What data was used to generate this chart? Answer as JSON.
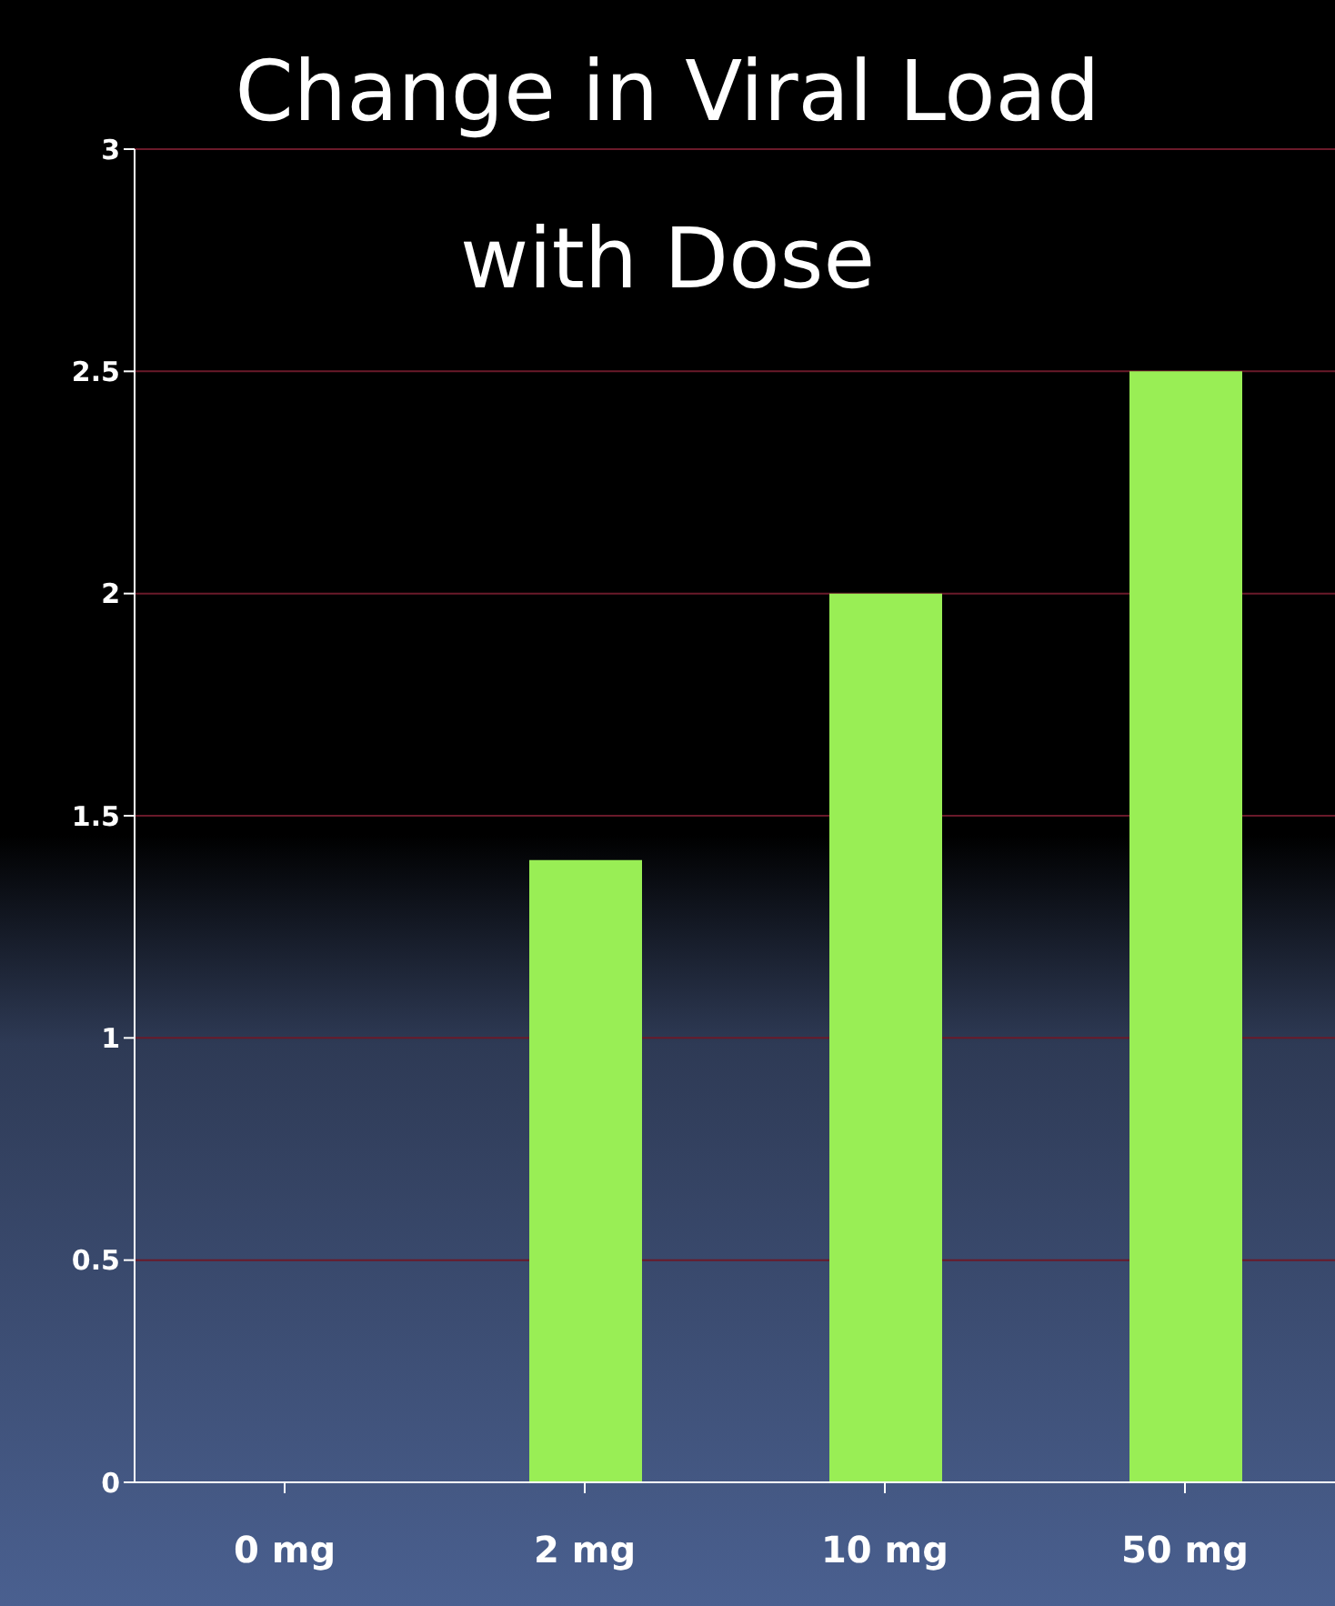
{
  "chart_data": {
    "type": "bar",
    "title": "Change in Viral Load\nwith Dose",
    "categories": [
      "0 mg",
      "2 mg",
      "10 mg",
      "50 mg"
    ],
    "values": [
      0,
      1.4,
      2,
      2.5
    ],
    "color": "#99ee55",
    "ylim": [
      0,
      3
    ],
    "yticks": [
      0,
      0.5,
      1,
      1.5,
      2,
      2.5,
      3
    ],
    "grid": "y"
  }
}
